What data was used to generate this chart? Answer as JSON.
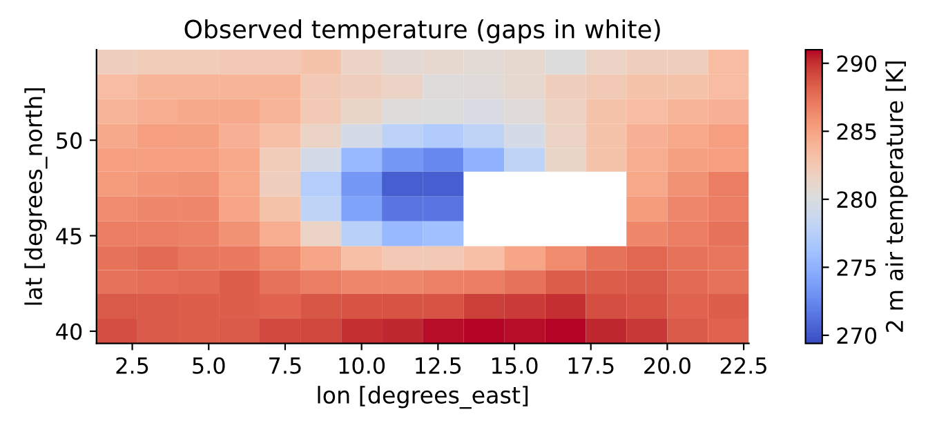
{
  "chart_data": {
    "type": "heatmap",
    "title": "Observed temperature (gaps in white)",
    "xlabel": "lon [degrees_east]",
    "ylabel": "lat [degrees_north]",
    "clabel": "2 m air temperature [K]",
    "x": [
      2.0,
      3.33,
      4.67,
      6.0,
      7.33,
      8.67,
      10.0,
      11.33,
      12.67,
      14.0,
      15.33,
      16.67,
      18.0,
      19.33,
      20.67,
      22.0
    ],
    "y": [
      54.1,
      52.8,
      51.5,
      50.2,
      49.0,
      47.7,
      46.4,
      45.1,
      43.8,
      42.6,
      41.3,
      40.0
    ],
    "xlim": [
      1.33,
      22.67
    ],
    "ylim": [
      39.36,
      54.74
    ],
    "xticks": [
      2.5,
      {
        "value": 5,
        "label": "5.0"
      },
      7.5,
      {
        "value": 10,
        "label": "10.0"
      },
      12.5,
      {
        "value": 15,
        "label": "15.0"
      },
      17.5,
      {
        "value": 20,
        "label": "20.0"
      },
      22.5
    ],
    "yticks": [
      40,
      45,
      50
    ],
    "clim": [
      269.4,
      291.0
    ],
    "cticks": [
      270,
      275,
      280,
      285,
      290
    ],
    "cells": [
      [
        282,
        282.3,
        282.3,
        282.5,
        282.5,
        283,
        281.5,
        280.8,
        281,
        280.7,
        281,
        280.2,
        281.5,
        282,
        282,
        283.5
      ],
      [
        283.5,
        284,
        284,
        284,
        284,
        282.5,
        282,
        281.5,
        280.3,
        280.5,
        281,
        282,
        282.5,
        283,
        283,
        283.5
      ],
      [
        284,
        284.5,
        284.7,
        284.7,
        284,
        282.5,
        281.3,
        280.3,
        280.2,
        279.8,
        280.5,
        281.8,
        283,
        283.5,
        284,
        284.3
      ],
      [
        284.7,
        285.3,
        285.2,
        284.3,
        283.3,
        281.5,
        279.5,
        277.8,
        277,
        278,
        279.5,
        281.5,
        283,
        284.3,
        284.8,
        285.3
      ],
      [
        285.3,
        285.3,
        285.3,
        284.8,
        282.3,
        279.5,
        275.5,
        273.3,
        272.5,
        275,
        278,
        281.3,
        283,
        284.5,
        285.2,
        285.3
      ],
      [
        285.5,
        285.8,
        286,
        284.8,
        282,
        277.3,
        273.3,
        270.3,
        270.3,
        null,
        null,
        null,
        null,
        284.8,
        286,
        287
      ],
      [
        286.3,
        286.5,
        286.5,
        285,
        283,
        278,
        274,
        271.5,
        271.5,
        null,
        null,
        null,
        null,
        285.5,
        286.5,
        287
      ],
      [
        287,
        287,
        286.8,
        286,
        284.5,
        281.5,
        277.5,
        275.5,
        276,
        null,
        null,
        null,
        null,
        286.5,
        287,
        287.5
      ],
      [
        287.5,
        287.8,
        287.3,
        287.2,
        286.3,
        285,
        283.3,
        282.5,
        282.5,
        283.3,
        285,
        286.3,
        287.5,
        288,
        287.5,
        287.3
      ],
      [
        287.5,
        287.7,
        287.8,
        288.3,
        287.5,
        287,
        286.5,
        286.5,
        286.8,
        287,
        287.5,
        288.3,
        288.3,
        288.5,
        287.8,
        287.5
      ],
      [
        288.5,
        288.5,
        288.3,
        288.3,
        288.2,
        288.7,
        288.8,
        288.8,
        288.8,
        289.5,
        289.7,
        290,
        289,
        288.8,
        288.2,
        288.3
      ],
      [
        289,
        288.5,
        288.3,
        288.5,
        289.2,
        289.3,
        290,
        290.3,
        290.8,
        291,
        290.8,
        291,
        290.3,
        289.8,
        288.5,
        288.2
      ]
    ]
  }
}
